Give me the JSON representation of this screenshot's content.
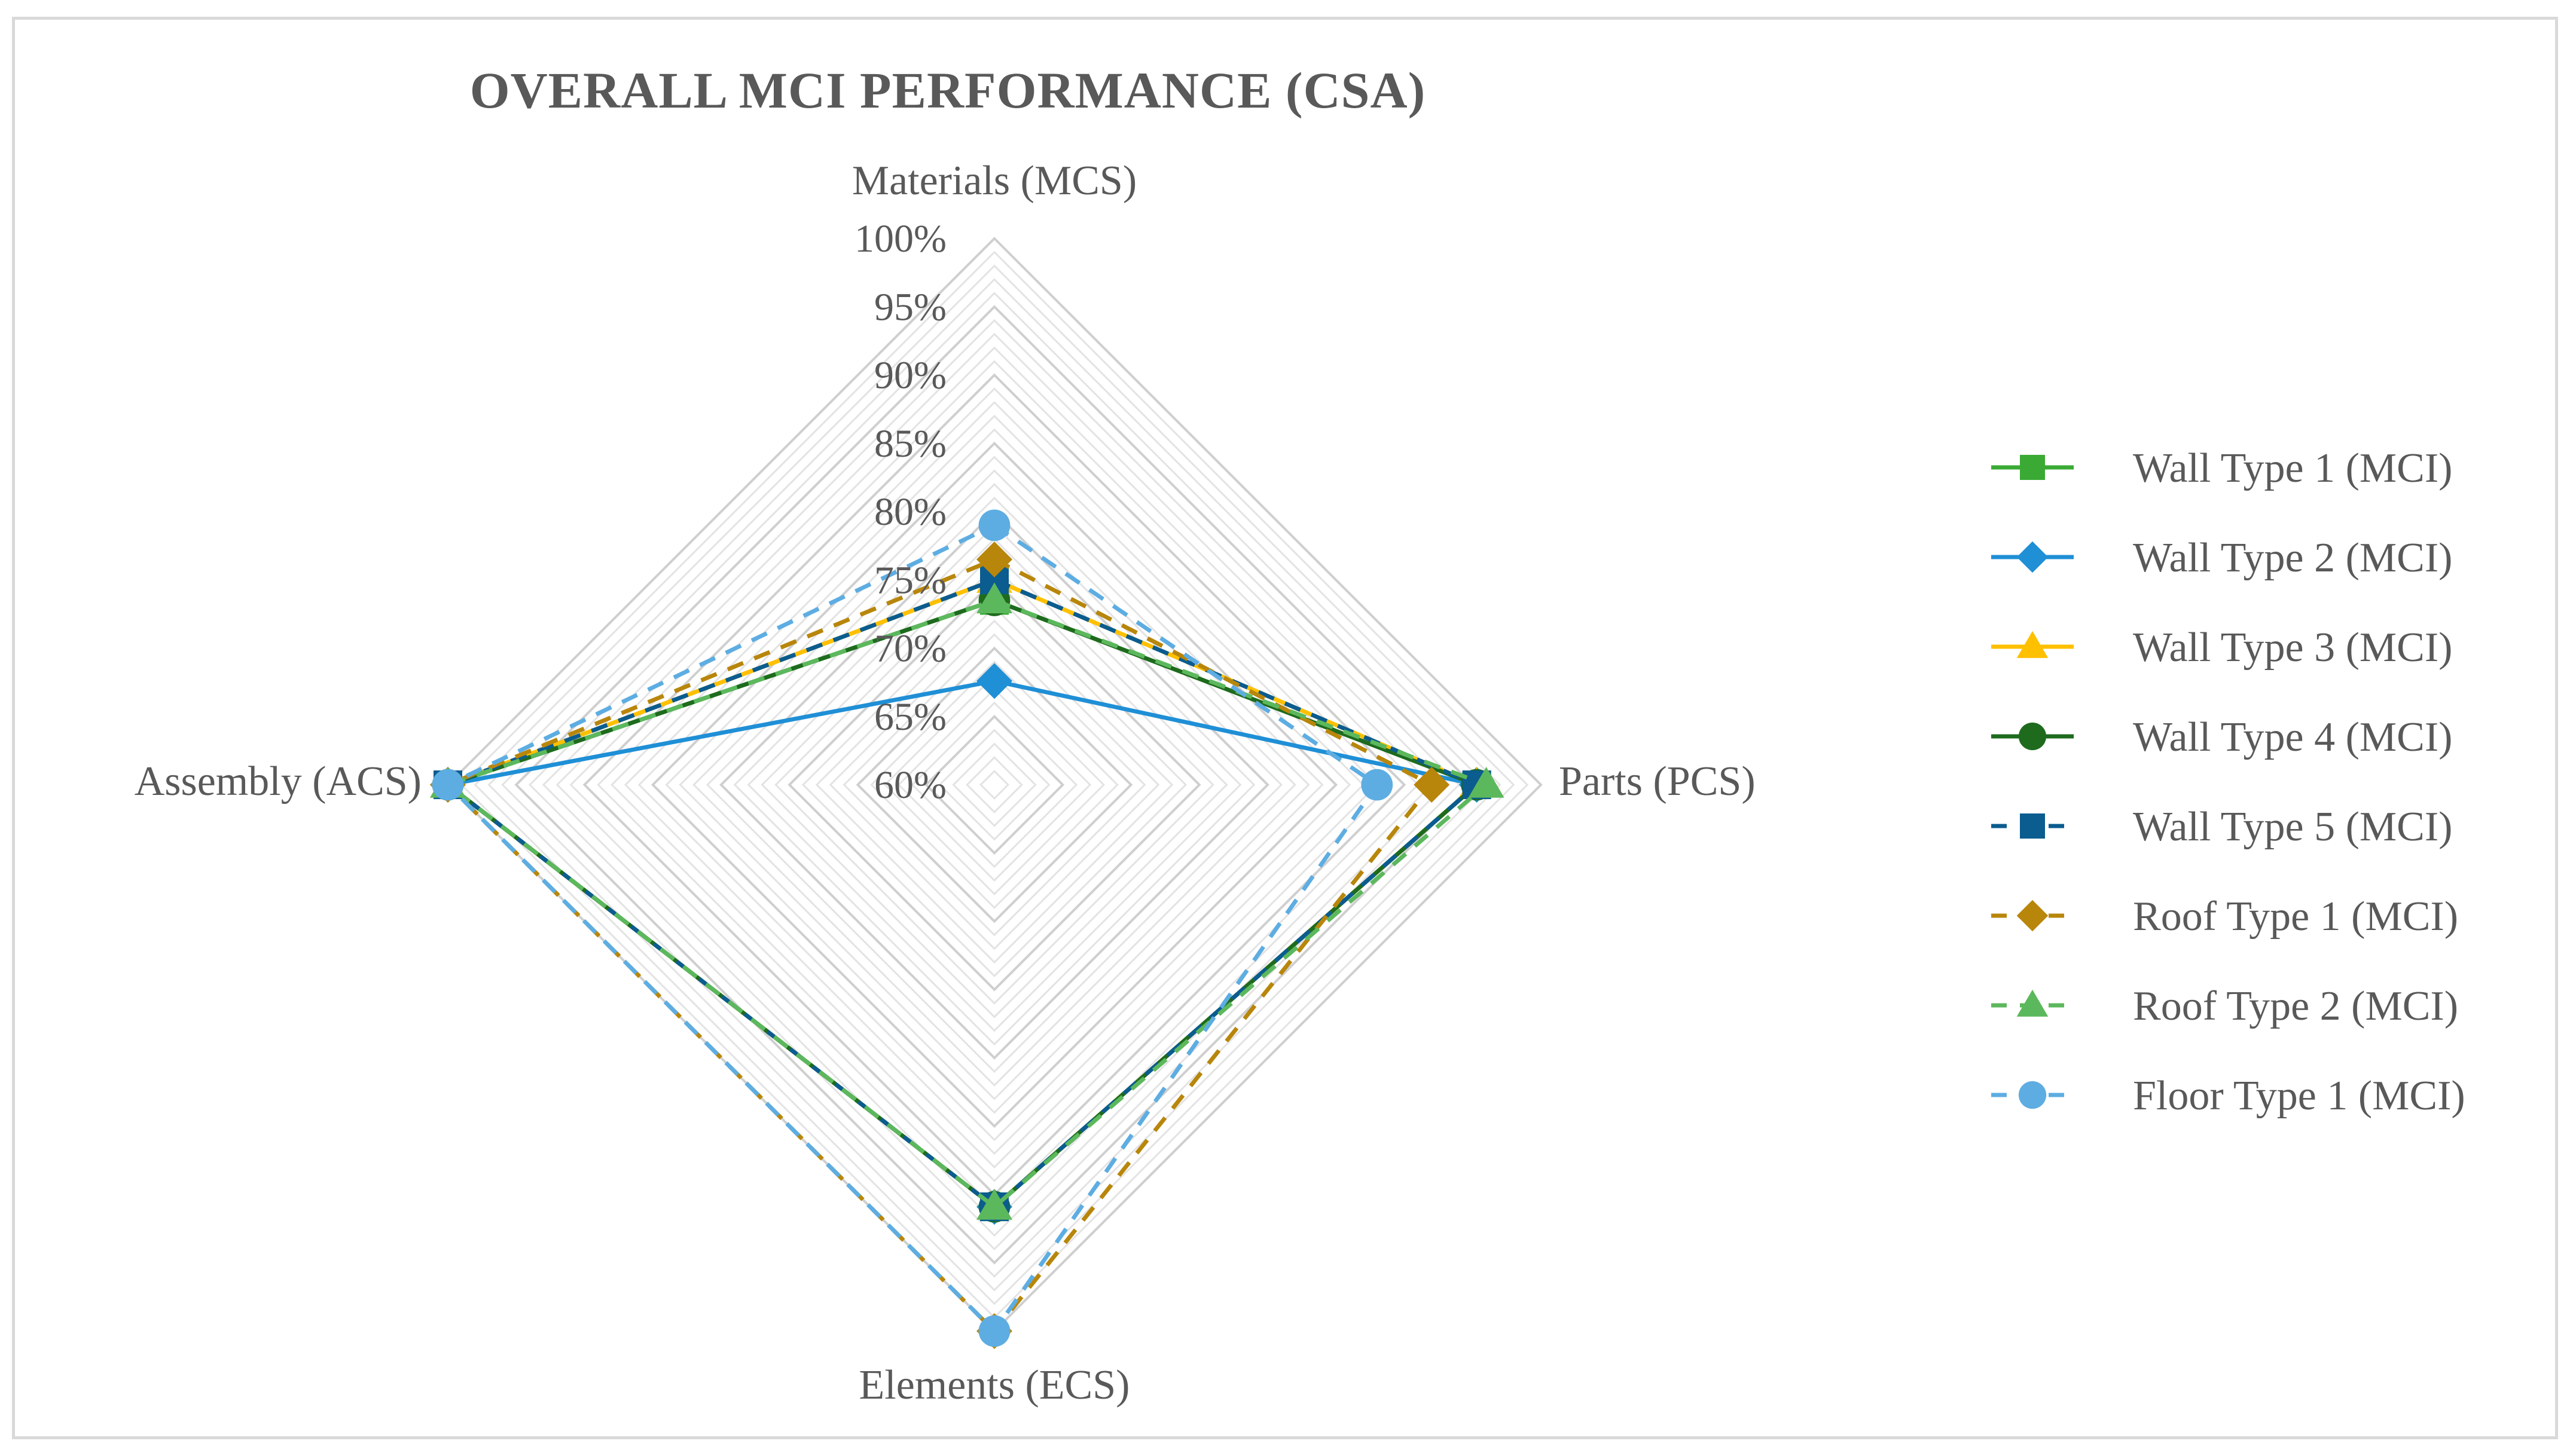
{
  "chart_data": {
    "type": "radar",
    "title": "OVERALL MCI PERFORMANCE (CSA)",
    "axes": [
      "Materials (MCS)",
      "Parts (PCS)",
      "Elements (ECS)",
      "Assembly (ACS)"
    ],
    "rlim": [
      0.6,
      1.0
    ],
    "ticks": [
      0.6,
      0.65,
      0.7,
      0.75,
      0.8,
      0.85,
      0.9,
      0.95,
      1.0
    ],
    "tick_labels": [
      "60%",
      "65%",
      "70%",
      "75%",
      "80%",
      "85%",
      "90%",
      "95%",
      "100%"
    ],
    "minor_grid_step": 0.01,
    "legend_position": "right",
    "series": [
      {
        "name": "Wall Type 1 (MCI)",
        "values": [
          0.735,
          0.953,
          0.909,
          1.0
        ],
        "color": "#3aaa35",
        "dash": false,
        "marker": "square"
      },
      {
        "name": "Wall Type 2 (MCI)",
        "values": [
          0.676,
          0.953,
          0.909,
          1.0
        ],
        "color": "#1f8fd6",
        "dash": false,
        "marker": "diamond"
      },
      {
        "name": "Wall Type 3 (MCI)",
        "values": [
          0.75,
          0.953,
          0.909,
          1.0
        ],
        "color": "#ffc000",
        "dash": false,
        "marker": "triangle"
      },
      {
        "name": "Wall Type 4 (MCI)",
        "values": [
          0.735,
          0.953,
          0.909,
          1.0
        ],
        "color": "#1e6b1e",
        "dash": false,
        "marker": "circle"
      },
      {
        "name": "Wall Type 5 (MCI)",
        "values": [
          0.75,
          0.953,
          0.909,
          1.0
        ],
        "color": "#0b5c8f",
        "dash": true,
        "marker": "square"
      },
      {
        "name": "Roof Type 1 (MCI)",
        "values": [
          0.765,
          0.92,
          1.0,
          1.0
        ],
        "color": "#b8860b",
        "dash": true,
        "marker": "diamond"
      },
      {
        "name": "Roof Type 2 (MCI)",
        "values": [
          0.735,
          0.96,
          0.909,
          1.0
        ],
        "color": "#5cb85c",
        "dash": true,
        "marker": "triangle"
      },
      {
        "name": "Floor Type 1 (MCI)",
        "values": [
          0.79,
          0.88,
          1.0,
          1.0
        ],
        "color": "#5dade2",
        "dash": true,
        "marker": "circle"
      }
    ]
  }
}
